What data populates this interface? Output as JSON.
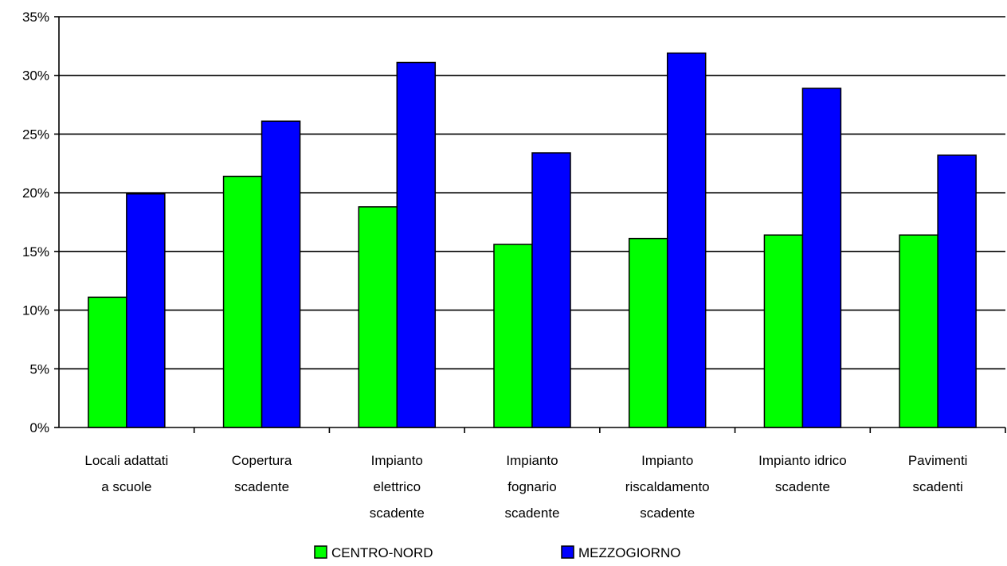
{
  "chart_data": {
    "type": "bar",
    "title": "",
    "xlabel": "",
    "ylabel": "",
    "ylim": [
      0,
      35
    ],
    "y_ticks": [
      "0%",
      "5%",
      "10%",
      "15%",
      "20%",
      "25%",
      "30%",
      "35%"
    ],
    "y_tick_values": [
      0,
      5,
      10,
      15,
      20,
      25,
      30,
      35
    ],
    "grid": true,
    "legend_position": "bottom",
    "categories": [
      [
        "Locali adattati",
        "a scuole"
      ],
      [
        "Copertura",
        "scadente"
      ],
      [
        "Impianto",
        "elettrico",
        "scadente"
      ],
      [
        "Impianto",
        "fognario",
        "scadente"
      ],
      [
        "Impianto",
        "riscaldamento",
        "scadente"
      ],
      [
        "Impianto idrico",
        "scadente"
      ],
      [
        "Pavimenti",
        "scadenti"
      ]
    ],
    "series": [
      {
        "name": "CENTRO-NORD",
        "color": "#00ff00",
        "values": [
          11.1,
          21.4,
          18.8,
          15.6,
          16.1,
          16.4,
          16.4
        ]
      },
      {
        "name": "MEZZOGIORNO",
        "color": "#0000ff",
        "values": [
          19.9,
          26.1,
          31.1,
          23.4,
          31.9,
          28.9,
          23.2
        ]
      }
    ]
  }
}
